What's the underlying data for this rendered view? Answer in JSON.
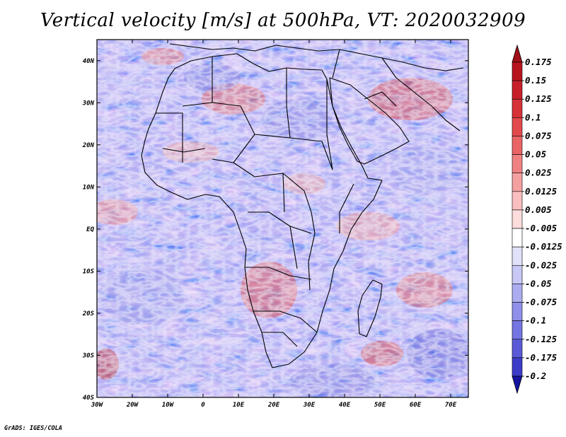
{
  "title": "Vertical velocity [m/s] at 500hPa, VT: 2020032909",
  "credit": "GrADS: IGES/COLA",
  "map": {
    "lon_range": [
      -30,
      75
    ],
    "lat_range": [
      -40,
      45
    ],
    "lat_ticks": [
      {
        "value": 40,
        "label": "40N"
      },
      {
        "value": 30,
        "label": "30N"
      },
      {
        "value": 20,
        "label": "20N"
      },
      {
        "value": 10,
        "label": "10N"
      },
      {
        "value": 0,
        "label": "EQ"
      },
      {
        "value": -10,
        "label": "10S"
      },
      {
        "value": -20,
        "label": "20S"
      },
      {
        "value": -30,
        "label": "30S"
      },
      {
        "value": -40,
        "label": "40S"
      }
    ],
    "lon_ticks": [
      {
        "value": -30,
        "label": "30W"
      },
      {
        "value": -20,
        "label": "20W"
      },
      {
        "value": -10,
        "label": "10W"
      },
      {
        "value": 0,
        "label": "0"
      },
      {
        "value": 10,
        "label": "10E"
      },
      {
        "value": 20,
        "label": "20E"
      },
      {
        "value": 30,
        "label": "30E"
      },
      {
        "value": 40,
        "label": "40E"
      },
      {
        "value": 50,
        "label": "50E"
      },
      {
        "value": 60,
        "label": "60E"
      },
      {
        "value": 70,
        "label": "70E"
      }
    ]
  },
  "colorbar": {
    "levels": [
      {
        "label": "0.175",
        "color": "#b8141e"
      },
      {
        "label": "0.15",
        "color": "#c8202a"
      },
      {
        "label": "0.125",
        "color": "#d63238"
      },
      {
        "label": "0.1",
        "color": "#e2494c"
      },
      {
        "label": "0.075",
        "color": "#ea6466"
      },
      {
        "label": "0.05",
        "color": "#f08182"
      },
      {
        "label": "0.025",
        "color": "#f5a0a0"
      },
      {
        "label": "0.0125",
        "color": "#fabebe"
      },
      {
        "label": "0.005",
        "color": "#fddcdc"
      },
      {
        "label": "-0.005",
        "color": "#ffffff"
      },
      {
        "label": "-0.0125",
        "color": "#e1e1fa"
      },
      {
        "label": "-0.025",
        "color": "#c8c8f6"
      },
      {
        "label": "-0.05",
        "color": "#acacf0"
      },
      {
        "label": "-0.075",
        "color": "#9090ea"
      },
      {
        "label": "-0.1",
        "color": "#7474e2"
      },
      {
        "label": "-0.125",
        "color": "#5a5ad8"
      },
      {
        "label": "-0.175",
        "color": "#3c3cc8"
      },
      {
        "label": "-0.2",
        "color": "#2626b4"
      }
    ],
    "top_color": "#a01018",
    "bottom_color": "#1414a0"
  }
}
